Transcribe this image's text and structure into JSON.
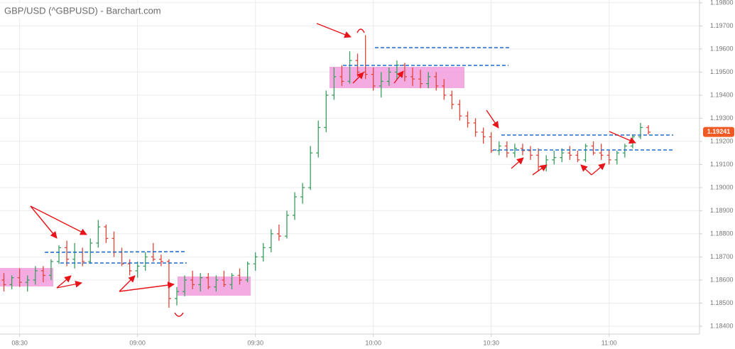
{
  "chart_data": {
    "type": "ohlc",
    "title": "GBP/USD (^GBPUSD) - Barchart.com",
    "up_color": "#3a9e5f",
    "down_color": "#e0453a",
    "grid": true,
    "x": [
      "08:26",
      "08:28",
      "08:30",
      "08:32",
      "08:34",
      "08:36",
      "08:38",
      "08:40",
      "08:42",
      "08:44",
      "08:46",
      "08:48",
      "08:50",
      "08:52",
      "08:54",
      "08:56",
      "08:58",
      "09:00",
      "09:02",
      "09:04",
      "09:06",
      "09:08",
      "09:10",
      "09:12",
      "09:14",
      "09:16",
      "09:18",
      "09:20",
      "09:22",
      "09:24",
      "09:26",
      "09:28",
      "09:30",
      "09:32",
      "09:34",
      "09:36",
      "09:38",
      "09:40",
      "09:42",
      "09:44",
      "09:46",
      "09:48",
      "09:50",
      "09:52",
      "09:54",
      "09:56",
      "09:58",
      "10:00",
      "10:02",
      "10:04",
      "10:06",
      "10:08",
      "10:10",
      "10:12",
      "10:14",
      "10:16",
      "10:18",
      "10:20",
      "10:22",
      "10:24",
      "10:26",
      "10:28",
      "10:30",
      "10:32",
      "10:34",
      "10:36",
      "10:38",
      "10:40",
      "10:42",
      "10:44",
      "10:46",
      "10:48",
      "10:50",
      "10:52",
      "10:54",
      "10:56",
      "10:58",
      "11:00",
      "11:02",
      "11:04",
      "11:06",
      "11:08",
      "11:10"
    ],
    "open": [
      1.186,
      1.1858,
      1.1861,
      1.1859,
      1.186,
      1.1864,
      1.1862,
      1.1868,
      1.1874,
      1.1869,
      1.1872,
      1.1868,
      1.1876,
      1.1883,
      1.1878,
      1.1872,
      1.1867,
      1.1864,
      1.1866,
      1.187,
      1.1869,
      1.1868,
      1.1852,
      1.1855,
      1.186,
      1.1858,
      1.1861,
      1.1857,
      1.186,
      1.1858,
      1.1862,
      1.186,
      1.1867,
      1.187,
      1.1874,
      1.188,
      1.1879,
      1.1888,
      1.1896,
      1.19,
      1.1915,
      1.1926,
      1.194,
      1.1948,
      1.1946,
      1.1955,
      1.195,
      1.1949,
      1.1944,
      1.1946,
      1.195,
      1.1953,
      1.1948,
      1.1947,
      1.1945,
      1.1948,
      1.1944,
      1.194,
      1.1936,
      1.1931,
      1.1928,
      1.1924,
      1.1922,
      1.1916,
      1.1918,
      1.1915,
      1.1917,
      1.1916,
      1.1914,
      1.1909,
      1.1912,
      1.1913,
      1.1915,
      1.1914,
      1.1912,
      1.1918,
      1.1915,
      1.1914,
      1.1912,
      1.1915,
      1.1918,
      1.1922,
      1.1926
    ],
    "high": [
      1.1863,
      1.1862,
      1.1865,
      1.1862,
      1.1866,
      1.1866,
      1.1869,
      1.1875,
      1.1877,
      1.1876,
      1.1874,
      1.1878,
      1.1886,
      1.1884,
      1.1881,
      1.1874,
      1.1869,
      1.1868,
      1.1872,
      1.1876,
      1.1871,
      1.1869,
      1.1857,
      1.1862,
      1.1864,
      1.1863,
      1.1863,
      1.1862,
      1.1864,
      1.1863,
      1.1865,
      1.1868,
      1.1872,
      1.1876,
      1.1882,
      1.1884,
      1.189,
      1.1898,
      1.1902,
      1.1918,
      1.1929,
      1.1942,
      1.1952,
      1.1953,
      1.1959,
      1.1958,
      1.1966,
      1.1952,
      1.195,
      1.1952,
      1.1955,
      1.1954,
      1.1952,
      1.1951,
      1.195,
      1.195,
      1.1947,
      1.1942,
      1.1938,
      1.1933,
      1.193,
      1.1926,
      1.1924,
      1.192,
      1.192,
      1.1919,
      1.1919,
      1.1918,
      1.1917,
      1.1914,
      1.1916,
      1.1917,
      1.1918,
      1.1916,
      1.1919,
      1.192,
      1.1919,
      1.1916,
      1.1916,
      1.1919,
      1.1923,
      1.1928,
      1.1927
    ],
    "low": [
      1.1855,
      1.1856,
      1.1857,
      1.1855,
      1.1858,
      1.1859,
      1.186,
      1.1867,
      1.1866,
      1.1865,
      1.1866,
      1.1867,
      1.1874,
      1.1876,
      1.187,
      1.1866,
      1.1862,
      1.1861,
      1.1864,
      1.1868,
      1.1866,
      1.1848,
      1.1849,
      1.1853,
      1.1856,
      1.1855,
      1.1856,
      1.1855,
      1.1857,
      1.1856,
      1.1858,
      1.1859,
      1.1864,
      1.1868,
      1.1872,
      1.1877,
      1.1878,
      1.1886,
      1.1893,
      1.1899,
      1.1913,
      1.1924,
      1.1938,
      1.1944,
      1.1945,
      1.1948,
      1.1947,
      1.1942,
      1.1939,
      1.1944,
      1.1947,
      1.1946,
      1.1944,
      1.1943,
      1.1943,
      1.1942,
      1.1938,
      1.1934,
      1.1929,
      1.1926,
      1.1922,
      1.1919,
      1.1915,
      1.1914,
      1.1913,
      1.1913,
      1.1914,
      1.1912,
      1.1907,
      1.1907,
      1.191,
      1.1911,
      1.1912,
      1.1911,
      1.1911,
      1.1914,
      1.1912,
      1.191,
      1.191,
      1.1913,
      1.1917,
      1.1921,
      1.1923
    ],
    "close": [
      1.1858,
      1.1861,
      1.1859,
      1.186,
      1.1864,
      1.1862,
      1.1868,
      1.1874,
      1.1869,
      1.1872,
      1.1868,
      1.1876,
      1.1883,
      1.1878,
      1.1872,
      1.1867,
      1.1864,
      1.1866,
      1.187,
      1.1869,
      1.1868,
      1.1852,
      1.1855,
      1.186,
      1.1858,
      1.1861,
      1.1857,
      1.186,
      1.1858,
      1.1862,
      1.186,
      1.1867,
      1.187,
      1.1874,
      1.188,
      1.1879,
      1.1888,
      1.1896,
      1.19,
      1.1915,
      1.1926,
      1.194,
      1.1948,
      1.1946,
      1.1955,
      1.195,
      1.1949,
      1.1944,
      1.1946,
      1.195,
      1.1953,
      1.1948,
      1.1947,
      1.1945,
      1.1948,
      1.1944,
      1.194,
      1.1936,
      1.1931,
      1.1928,
      1.1924,
      1.1922,
      1.1916,
      1.1918,
      1.1915,
      1.1917,
      1.1916,
      1.1914,
      1.1909,
      1.1912,
      1.1913,
      1.1915,
      1.1914,
      1.1912,
      1.1918,
      1.1915,
      1.1914,
      1.1912,
      1.1915,
      1.1918,
      1.1922,
      1.1926,
      1.1924
    ],
    "last_price": 1.19241,
    "last_price_color": "#f05a24",
    "xlim": [
      "08:25",
      "11:23"
    ],
    "xticks": [
      "08:30",
      "09:00",
      "09:30",
      "10:00",
      "10:30",
      "11:00"
    ],
    "ylim": [
      1.18366,
      1.19812
    ],
    "yticks": [
      {
        "value": 1.184,
        "label": "1.18400"
      },
      {
        "value": 1.185,
        "label": "1.18500"
      },
      {
        "value": 1.186,
        "label": "1.18600"
      },
      {
        "value": 1.187,
        "label": "1.18700"
      },
      {
        "value": 1.188,
        "label": "1.18800"
      },
      {
        "value": 1.189,
        "label": "1.18900"
      },
      {
        "value": 1.19,
        "label": "1.19000"
      },
      {
        "value": 1.191,
        "label": "1.19100"
      },
      {
        "value": 1.192,
        "label": "1.19200"
      },
      {
        "value": 1.193,
        "label": "1.19300"
      },
      {
        "value": 1.194,
        "label": "1.19400"
      },
      {
        "value": 1.195,
        "label": "1.19500"
      },
      {
        "value": 1.196,
        "label": "1.19600"
      },
      {
        "value": 1.197,
        "label": "1.19700"
      },
      {
        "value": 1.198,
        "label": "1.19800"
      }
    ]
  }
}
